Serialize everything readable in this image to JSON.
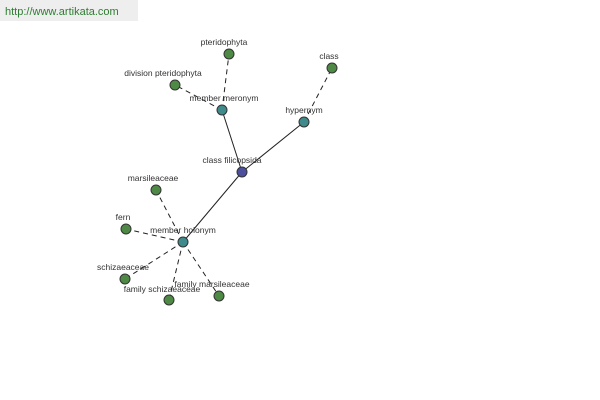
{
  "header": {
    "url": "http://www.artikata.com"
  },
  "nodes": [
    {
      "label": "class filicopsida"
    },
    {
      "label": "member meronym"
    },
    {
      "label": "hypernym"
    },
    {
      "label": "member holonym"
    },
    {
      "label": "pteridophyta"
    },
    {
      "label": "division pteridophyta"
    },
    {
      "label": "class"
    },
    {
      "label": "marsileaceae"
    },
    {
      "label": "fern"
    },
    {
      "label": "schizaeaceae"
    },
    {
      "label": "family schizaeaceae"
    },
    {
      "label": "family marsileaceae"
    }
  ]
}
